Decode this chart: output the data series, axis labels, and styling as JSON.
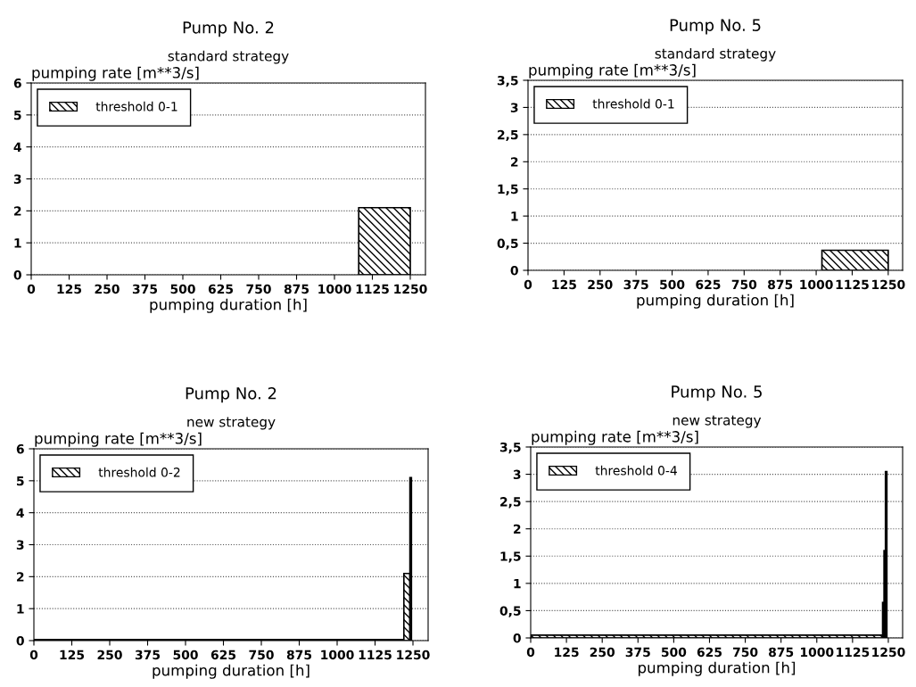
{
  "chart_data": [
    {
      "type": "histogram",
      "title": "Pump No. 2",
      "subtitle": "standard strategy",
      "ylabel": "pumping rate [m**3/s]",
      "xlabel": "pumping duration [h]",
      "bins": [
        1080,
        1250
      ],
      "series": [
        {
          "name": "threshold 0-1",
          "color": "#000000",
          "values": [
            2.1
          ]
        }
      ],
      "xlim": [
        0,
        1300
      ],
      "xticks": [
        0,
        125,
        250,
        375,
        500,
        625,
        750,
        875,
        1000,
        1125,
        1250
      ],
      "ylim": [
        0,
        6
      ],
      "yticks": [
        0,
        1,
        2,
        3,
        4,
        5,
        6
      ],
      "grid": "y",
      "legend": "top left"
    },
    {
      "type": "histogram",
      "title": "Pump No. 5",
      "subtitle": "standard strategy",
      "ylabel": "pumping rate [m**3/s]",
      "xlabel": "pumping duration [h]",
      "bins": [
        1020,
        1250
      ],
      "series": [
        {
          "name": "threshold 0-1",
          "color": "#000000",
          "values": [
            0.37
          ]
        }
      ],
      "xlim": [
        0,
        1300
      ],
      "xticks": [
        0,
        125,
        250,
        375,
        500,
        625,
        750,
        875,
        1000,
        1125,
        1250
      ],
      "ylim": [
        0,
        3.5
      ],
      "yticks": [
        0,
        {
          "value": 0.5,
          "label": "0,5"
        },
        1,
        {
          "value": 1.5,
          "label": "1,5"
        },
        2,
        {
          "value": 2.5,
          "label": "2,5"
        },
        3,
        {
          "value": 3.5,
          "label": "3,5"
        }
      ],
      "grid": "y",
      "legend": "top left"
    },
    {
      "type": "histogram",
      "title": "Pump No. 2",
      "subtitle": "new strategy",
      "ylabel": "pumping rate [m**3/s]",
      "xlabel": "pumping duration [h]",
      "bins": [
        0,
        1220,
        1240,
        1245
      ],
      "series": [
        {
          "name": "threshold 0-2",
          "color": "#000000",
          "values": [
            0.03,
            2.1,
            5.1
          ]
        }
      ],
      "xlim": [
        0,
        1300
      ],
      "xticks": [
        0,
        125,
        250,
        375,
        500,
        625,
        750,
        875,
        1000,
        1125,
        1250
      ],
      "ylim": [
        0,
        6
      ],
      "yticks": [
        0,
        1,
        2,
        3,
        4,
        5,
        6
      ],
      "grid": "y",
      "legend": "top left"
    },
    {
      "type": "histogram",
      "title": "Pump No. 5",
      "subtitle": "new strategy",
      "ylabel": "pumping rate [m**3/s]",
      "xlabel": "pumping duration [h]",
      "bins": [
        0,
        1230,
        1235,
        1240,
        1245
      ],
      "series": [
        {
          "name": "threshold 0-4",
          "color": "#000000",
          "values": [
            0.05,
            0.65,
            1.6,
            3.05
          ]
        }
      ],
      "xlim": [
        0,
        1300
      ],
      "xticks": [
        0,
        125,
        250,
        375,
        500,
        625,
        750,
        875,
        1000,
        1125,
        1250
      ],
      "ylim": [
        0,
        3.5
      ],
      "yticks": [
        0,
        {
          "value": 0.5,
          "label": "0,5"
        },
        1,
        {
          "value": 1.5,
          "label": "1,5"
        },
        2,
        {
          "value": 2.5,
          "label": "2,5"
        },
        3,
        {
          "value": 3.5,
          "label": "3,5"
        }
      ],
      "grid": "y",
      "legend": "top left"
    }
  ]
}
